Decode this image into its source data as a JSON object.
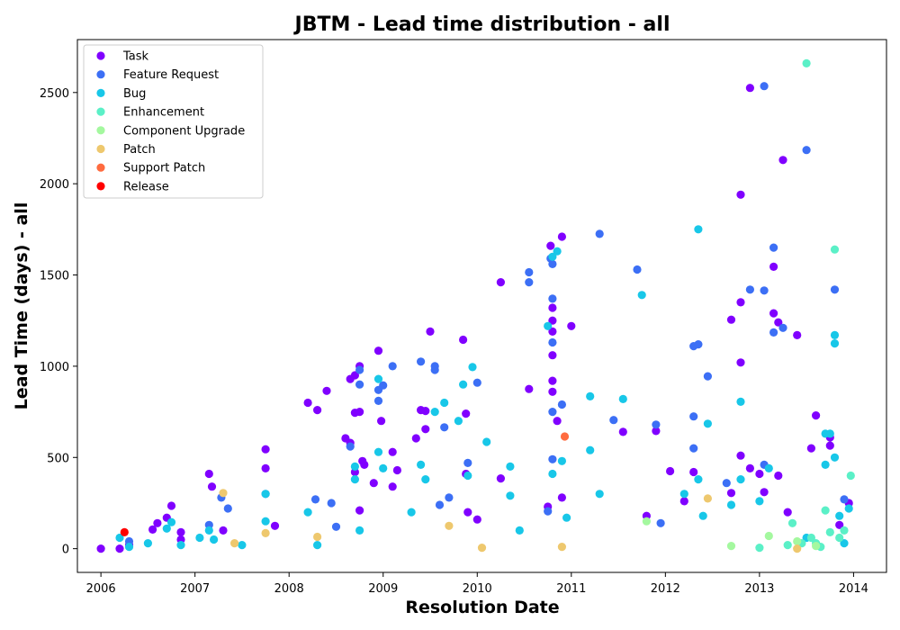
{
  "chart_data": {
    "type": "scatter",
    "title": "JBTM - Lead time distribution - all",
    "xlabel": "Resolution Date",
    "ylabel": "Lead Time (days) - all",
    "xlim": [
      2005.75,
      2014.35
    ],
    "ylim": [
      -130,
      2790
    ],
    "x_ticks": [
      2006,
      2007,
      2008,
      2009,
      2010,
      2011,
      2012,
      2013,
      2014
    ],
    "y_ticks": [
      0,
      500,
      1000,
      1500,
      2000,
      2500
    ],
    "grid": false,
    "legend_position": "top-left",
    "series": [
      {
        "name": "Task",
        "color": "#8000ff",
        "points": [
          [
            2006.0,
            0
          ],
          [
            2006.2,
            0
          ],
          [
            2006.3,
            20
          ],
          [
            2006.55,
            105
          ],
          [
            2006.6,
            140
          ],
          [
            2006.7,
            170
          ],
          [
            2006.75,
            235
          ],
          [
            2006.85,
            90
          ],
          [
            2006.85,
            50
          ],
          [
            2007.15,
            410
          ],
          [
            2007.18,
            340
          ],
          [
            2007.3,
            100
          ],
          [
            2007.75,
            545
          ],
          [
            2007.75,
            440
          ],
          [
            2007.85,
            125
          ],
          [
            2008.2,
            800
          ],
          [
            2008.3,
            760
          ],
          [
            2008.4,
            865
          ],
          [
            2008.6,
            605
          ],
          [
            2008.65,
            580
          ],
          [
            2008.65,
            930
          ],
          [
            2008.7,
            950
          ],
          [
            2008.7,
            745
          ],
          [
            2008.75,
            1000
          ],
          [
            2008.75,
            750
          ],
          [
            2008.78,
            480
          ],
          [
            2008.8,
            460
          ],
          [
            2008.7,
            420
          ],
          [
            2008.75,
            210
          ],
          [
            2008.95,
            1085
          ],
          [
            2008.98,
            700
          ],
          [
            2008.9,
            360
          ],
          [
            2009.1,
            530
          ],
          [
            2009.1,
            340
          ],
          [
            2009.15,
            430
          ],
          [
            2009.35,
            605
          ],
          [
            2009.4,
            760
          ],
          [
            2009.45,
            755
          ],
          [
            2009.45,
            655
          ],
          [
            2009.5,
            1190
          ],
          [
            2009.85,
            1145
          ],
          [
            2009.88,
            740
          ],
          [
            2009.88,
            410
          ],
          [
            2009.9,
            200
          ],
          [
            2010.0,
            160
          ],
          [
            2010.25,
            1460
          ],
          [
            2010.25,
            385
          ],
          [
            2010.55,
            875
          ],
          [
            2010.75,
            230
          ],
          [
            2010.78,
            1660
          ],
          [
            2010.8,
            1320
          ],
          [
            2010.8,
            1250
          ],
          [
            2010.8,
            1190
          ],
          [
            2010.8,
            1060
          ],
          [
            2010.8,
            920
          ],
          [
            2010.8,
            860
          ],
          [
            2010.85,
            700
          ],
          [
            2010.9,
            1710
          ],
          [
            2010.9,
            280
          ],
          [
            2011.0,
            1220
          ],
          [
            2011.55,
            640
          ],
          [
            2011.8,
            180
          ],
          [
            2011.9,
            645
          ],
          [
            2012.05,
            425
          ],
          [
            2012.2,
            260
          ],
          [
            2012.3,
            420
          ],
          [
            2012.7,
            1255
          ],
          [
            2012.7,
            305
          ],
          [
            2012.8,
            1940
          ],
          [
            2012.8,
            1350
          ],
          [
            2012.8,
            1020
          ],
          [
            2012.8,
            510
          ],
          [
            2012.9,
            2525
          ],
          [
            2012.9,
            440
          ],
          [
            2013.0,
            410
          ],
          [
            2013.05,
            310
          ],
          [
            2013.15,
            1545
          ],
          [
            2013.15,
            1290
          ],
          [
            2013.2,
            1240
          ],
          [
            2013.25,
            2130
          ],
          [
            2013.2,
            400
          ],
          [
            2013.3,
            200
          ],
          [
            2013.4,
            1170
          ],
          [
            2013.55,
            550
          ],
          [
            2013.6,
            730
          ],
          [
            2013.75,
            610
          ],
          [
            2013.75,
            565
          ],
          [
            2013.85,
            130
          ],
          [
            2013.95,
            250
          ]
        ]
      },
      {
        "name": "Feature Request",
        "color": "#3c6ff5",
        "points": [
          [
            2006.3,
            40
          ],
          [
            2007.15,
            130
          ],
          [
            2007.28,
            280
          ],
          [
            2007.35,
            220
          ],
          [
            2007.75,
            300
          ],
          [
            2008.28,
            270
          ],
          [
            2008.45,
            250
          ],
          [
            2008.5,
            120
          ],
          [
            2008.65,
            560
          ],
          [
            2008.75,
            980
          ],
          [
            2008.75,
            900
          ],
          [
            2008.95,
            810
          ],
          [
            2008.95,
            870
          ],
          [
            2009.0,
            895
          ],
          [
            2009.1,
            1000
          ],
          [
            2009.4,
            1025
          ],
          [
            2009.55,
            1000
          ],
          [
            2009.55,
            980
          ],
          [
            2009.6,
            240
          ],
          [
            2009.65,
            665
          ],
          [
            2009.7,
            280
          ],
          [
            2009.9,
            470
          ],
          [
            2010.0,
            910
          ],
          [
            2010.55,
            1515
          ],
          [
            2010.55,
            1460
          ],
          [
            2010.75,
            205
          ],
          [
            2010.78,
            1590
          ],
          [
            2010.8,
            1560
          ],
          [
            2010.8,
            1370
          ],
          [
            2010.8,
            1130
          ],
          [
            2010.8,
            750
          ],
          [
            2010.8,
            490
          ],
          [
            2010.9,
            790
          ],
          [
            2011.3,
            1725
          ],
          [
            2011.45,
            705
          ],
          [
            2011.7,
            1530
          ],
          [
            2011.9,
            680
          ],
          [
            2011.95,
            140
          ],
          [
            2012.3,
            550
          ],
          [
            2012.3,
            1110
          ],
          [
            2012.35,
            1120
          ],
          [
            2012.45,
            945
          ],
          [
            2012.3,
            725
          ],
          [
            2012.65,
            360
          ],
          [
            2012.9,
            1420
          ],
          [
            2013.05,
            2535
          ],
          [
            2013.05,
            1415
          ],
          [
            2013.15,
            1650
          ],
          [
            2013.15,
            1185
          ],
          [
            2013.25,
            1210
          ],
          [
            2013.05,
            460
          ],
          [
            2013.5,
            2185
          ],
          [
            2013.8,
            1420
          ],
          [
            2013.9,
            270
          ]
        ]
      },
      {
        "name": "Bug",
        "color": "#18c7e8",
        "points": [
          [
            2006.2,
            60
          ],
          [
            2006.3,
            10
          ],
          [
            2006.5,
            30
          ],
          [
            2006.7,
            110
          ],
          [
            2006.75,
            145
          ],
          [
            2006.85,
            20
          ],
          [
            2007.05,
            60
          ],
          [
            2007.15,
            100
          ],
          [
            2007.2,
            50
          ],
          [
            2007.5,
            20
          ],
          [
            2007.75,
            300
          ],
          [
            2007.75,
            150
          ],
          [
            2008.2,
            200
          ],
          [
            2008.3,
            20
          ],
          [
            2008.7,
            450
          ],
          [
            2008.7,
            380
          ],
          [
            2008.75,
            100
          ],
          [
            2008.95,
            930
          ],
          [
            2008.95,
            530
          ],
          [
            2009.0,
            440
          ],
          [
            2009.3,
            200
          ],
          [
            2009.4,
            460
          ],
          [
            2009.45,
            380
          ],
          [
            2009.55,
            750
          ],
          [
            2009.65,
            800
          ],
          [
            2009.8,
            700
          ],
          [
            2009.85,
            900
          ],
          [
            2009.9,
            400
          ],
          [
            2009.95,
            995
          ],
          [
            2010.1,
            585
          ],
          [
            2010.35,
            450
          ],
          [
            2010.35,
            290
          ],
          [
            2010.45,
            100
          ],
          [
            2010.75,
            1220
          ],
          [
            2010.8,
            1600
          ],
          [
            2010.85,
            1630
          ],
          [
            2010.8,
            410
          ],
          [
            2010.9,
            480
          ],
          [
            2010.95,
            170
          ],
          [
            2011.2,
            835
          ],
          [
            2011.2,
            540
          ],
          [
            2011.3,
            300
          ],
          [
            2011.55,
            820
          ],
          [
            2011.75,
            1390
          ],
          [
            2012.2,
            300
          ],
          [
            2012.35,
            1750
          ],
          [
            2012.35,
            380
          ],
          [
            2012.4,
            180
          ],
          [
            2012.45,
            685
          ],
          [
            2012.7,
            240
          ],
          [
            2012.8,
            805
          ],
          [
            2012.8,
            380
          ],
          [
            2013.0,
            260
          ],
          [
            2013.1,
            440
          ],
          [
            2013.7,
            630
          ],
          [
            2013.75,
            630
          ],
          [
            2013.7,
            460
          ],
          [
            2013.8,
            1170
          ],
          [
            2013.8,
            1125
          ],
          [
            2013.8,
            500
          ],
          [
            2013.85,
            180
          ],
          [
            2013.95,
            220
          ],
          [
            2013.9,
            30
          ],
          [
            2013.5,
            60
          ]
        ]
      },
      {
        "name": "Enhancement",
        "color": "#5bf0c7",
        "points": [
          [
            2013.0,
            5
          ],
          [
            2013.3,
            20
          ],
          [
            2013.5,
            2660
          ],
          [
            2013.55,
            60
          ],
          [
            2013.6,
            30
          ],
          [
            2013.65,
            10
          ],
          [
            2013.7,
            210
          ],
          [
            2013.75,
            90
          ],
          [
            2013.8,
            1640
          ],
          [
            2013.85,
            60
          ],
          [
            2013.9,
            100
          ],
          [
            2013.97,
            400
          ],
          [
            2013.35,
            140
          ],
          [
            2013.45,
            30
          ]
        ]
      },
      {
        "name": "Component  Upgrade",
        "color": "#a4f89f",
        "points": [
          [
            2011.8,
            150
          ],
          [
            2012.7,
            15
          ],
          [
            2013.1,
            70
          ],
          [
            2013.4,
            40
          ],
          [
            2013.6,
            15
          ]
        ]
      },
      {
        "name": "Patch",
        "color": "#eec86e",
        "points": [
          [
            2007.3,
            305
          ],
          [
            2007.42,
            30
          ],
          [
            2007.75,
            85
          ],
          [
            2008.3,
            65
          ],
          [
            2009.7,
            125
          ],
          [
            2010.05,
            5
          ],
          [
            2010.9,
            10
          ],
          [
            2012.45,
            275
          ],
          [
            2013.4,
            0
          ]
        ]
      },
      {
        "name": "Support Patch",
        "color": "#ff6b3f",
        "points": [
          [
            2010.93,
            615
          ]
        ]
      },
      {
        "name": "Release",
        "color": "#ff0000",
        "points": [
          [
            2006.25,
            90
          ]
        ]
      }
    ]
  }
}
